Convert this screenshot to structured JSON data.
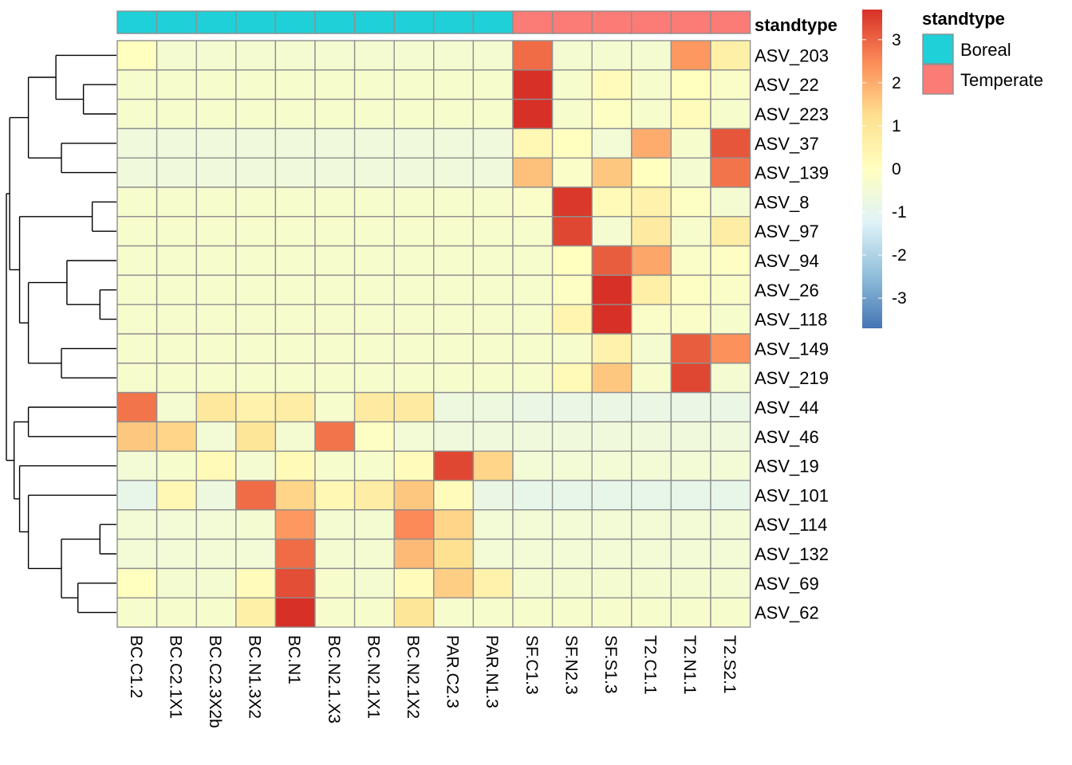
{
  "chart_data": {
    "type": "heatmap",
    "columns": [
      "BC.C1.2",
      "BC.C2.1X1",
      "BC.C2.3X2b",
      "BC.N1.3X2",
      "BC.N1",
      "BC.N2.1.X3",
      "BC.N2.1X1",
      "BC.N2.1X2",
      "PAR.C2.3",
      "PAR.N1.3",
      "SF.C1.3",
      "SF.N2.3",
      "SF.S1.3",
      "T2.C1.1",
      "T2.N1.1",
      "T2.S2.1"
    ],
    "rows": [
      "ASV_203",
      "ASV_22",
      "ASV_223",
      "ASV_37",
      "ASV_139",
      "ASV_8",
      "ASV_97",
      "ASV_94",
      "ASV_26",
      "ASV_118",
      "ASV_149",
      "ASV_219",
      "ASV_44",
      "ASV_46",
      "ASV_19",
      "ASV_101",
      "ASV_114",
      "ASV_132",
      "ASV_69",
      "ASV_62"
    ],
    "values": [
      [
        0.0,
        -0.4,
        -0.4,
        -0.4,
        -0.4,
        -0.4,
        -0.4,
        -0.4,
        -0.4,
        -0.4,
        2.9,
        -0.4,
        -0.4,
        -0.4,
        2.3,
        0.6
      ],
      [
        -0.3,
        -0.3,
        -0.3,
        -0.3,
        -0.3,
        -0.3,
        -0.3,
        -0.3,
        -0.3,
        -0.3,
        3.7,
        -0.3,
        0.1,
        -0.3,
        0.0,
        -0.2
      ],
      [
        -0.3,
        -0.3,
        -0.3,
        -0.3,
        -0.3,
        -0.3,
        -0.3,
        -0.3,
        -0.3,
        -0.3,
        3.7,
        -0.3,
        -0.1,
        -0.3,
        0.1,
        -0.3
      ],
      [
        -0.6,
        -0.6,
        -0.6,
        -0.6,
        -0.6,
        -0.6,
        -0.6,
        -0.6,
        -0.6,
        -0.6,
        0.3,
        0.0,
        -0.5,
        2.0,
        -0.3,
        3.2
      ],
      [
        -0.6,
        -0.6,
        -0.6,
        -0.6,
        -0.6,
        -0.6,
        -0.6,
        -0.6,
        -0.6,
        -0.6,
        1.7,
        -0.2,
        1.6,
        0.0,
        -0.4,
        2.8
      ],
      [
        -0.3,
        -0.3,
        -0.3,
        -0.3,
        -0.3,
        -0.3,
        -0.3,
        -0.3,
        -0.3,
        -0.3,
        -0.2,
        3.6,
        0.2,
        0.5,
        -0.1,
        -0.4
      ],
      [
        -0.3,
        -0.3,
        -0.3,
        -0.3,
        -0.3,
        -0.3,
        -0.3,
        -0.3,
        -0.3,
        -0.3,
        -0.3,
        3.4,
        -0.4,
        0.8,
        -0.3,
        0.7
      ],
      [
        -0.3,
        -0.3,
        -0.3,
        -0.3,
        -0.3,
        -0.3,
        -0.3,
        -0.3,
        -0.3,
        -0.3,
        -0.3,
        0.0,
        3.1,
        2.1,
        -0.2,
        -0.1
      ],
      [
        -0.3,
        -0.3,
        -0.3,
        -0.3,
        -0.3,
        -0.3,
        -0.3,
        -0.3,
        -0.3,
        -0.3,
        -0.3,
        -0.1,
        3.7,
        0.6,
        -0.1,
        -0.2
      ],
      [
        -0.3,
        -0.3,
        -0.3,
        -0.3,
        -0.3,
        -0.3,
        -0.3,
        -0.3,
        -0.3,
        -0.3,
        -0.3,
        0.4,
        3.7,
        -0.2,
        -0.2,
        -0.3
      ],
      [
        -0.3,
        -0.3,
        -0.3,
        -0.3,
        -0.3,
        -0.3,
        -0.3,
        -0.3,
        -0.3,
        -0.3,
        -0.3,
        -0.3,
        0.5,
        -0.4,
        3.1,
        2.4
      ],
      [
        -0.3,
        -0.3,
        -0.3,
        -0.3,
        -0.3,
        -0.3,
        -0.3,
        -0.3,
        -0.3,
        -0.3,
        -0.3,
        0.2,
        1.6,
        -0.3,
        3.4,
        -0.4
      ],
      [
        2.8,
        -0.4,
        0.9,
        0.5,
        0.7,
        -0.3,
        0.8,
        0.8,
        -0.7,
        -0.7,
        -0.8,
        -0.8,
        -0.8,
        -0.8,
        -0.8,
        -0.8
      ],
      [
        1.6,
        1.4,
        -0.5,
        1.0,
        -0.4,
        2.8,
        -0.1,
        -0.5,
        -0.6,
        -0.6,
        -0.6,
        -0.6,
        -0.6,
        -0.6,
        -0.6,
        -0.6
      ],
      [
        -0.5,
        -0.3,
        0.2,
        -0.4,
        0.2,
        -0.3,
        -0.3,
        0.1,
        3.4,
        1.4,
        -0.5,
        -0.5,
        -0.5,
        -0.5,
        -0.5,
        -0.5
      ],
      [
        -0.9,
        0.3,
        -0.7,
        2.9,
        1.4,
        0.3,
        0.7,
        1.6,
        0.1,
        -0.8,
        -0.9,
        -0.9,
        -0.9,
        -0.9,
        -0.9,
        -0.9
      ],
      [
        -0.5,
        -0.5,
        -0.5,
        -0.4,
        2.3,
        -0.4,
        -0.4,
        2.5,
        1.4,
        -0.5,
        -0.5,
        -0.5,
        -0.5,
        -0.5,
        -0.5,
        -0.5
      ],
      [
        -0.5,
        -0.5,
        -0.5,
        -0.5,
        2.9,
        -0.4,
        -0.4,
        1.8,
        1.2,
        -0.5,
        -0.5,
        -0.5,
        -0.5,
        -0.5,
        -0.5,
        -0.5
      ],
      [
        0.0,
        -0.4,
        -0.4,
        0.1,
        3.3,
        -0.3,
        -0.4,
        0.1,
        1.5,
        0.5,
        -0.4,
        -0.4,
        -0.4,
        -0.4,
        -0.4,
        -0.4
      ],
      [
        -0.3,
        -0.3,
        -0.3,
        0.6,
        3.7,
        -0.3,
        -0.3,
        1.0,
        -0.3,
        -0.3,
        -0.3,
        -0.3,
        -0.3,
        -0.3,
        -0.3,
        -0.3
      ]
    ],
    "color_scale": {
      "domain": [
        -3.7,
        3.7
      ],
      "stops": [
        "#4575b4",
        "#91bfdb",
        "#e0f3f8",
        "#ffffbf",
        "#fee090",
        "#fc8d59",
        "#d73027"
      ],
      "ticks": [
        3,
        2,
        1,
        0,
        -1,
        -2,
        -3
      ]
    },
    "column_annotation": {
      "name": "standtype",
      "values": [
        "Boreal",
        "Boreal",
        "Boreal",
        "Boreal",
        "Boreal",
        "Boreal",
        "Boreal",
        "Boreal",
        "Boreal",
        "Boreal",
        "Temperate",
        "Temperate",
        "Temperate",
        "Temperate",
        "Temperate",
        "Temperate"
      ],
      "levels": [
        {
          "label": "Boreal",
          "color": "#1fd0d8"
        },
        {
          "label": "Temperate",
          "color": "#fb7b76"
        }
      ]
    },
    "row_dendrogram": {
      "merges": [
        [
          1,
          2,
          0.3
        ],
        [
          0,
          20,
          0.55
        ],
        [
          3,
          4,
          0.5
        ],
        [
          21,
          22,
          0.8
        ],
        [
          5,
          6,
          0.22
        ],
        [
          8,
          9,
          0.15
        ],
        [
          7,
          25,
          0.45
        ],
        [
          10,
          11,
          0.5
        ],
        [
          26,
          27,
          0.8
        ],
        [
          24,
          28,
          0.88
        ],
        [
          23,
          29,
          0.97
        ],
        [
          12,
          13,
          0.8
        ],
        [
          16,
          17,
          0.15
        ],
        [
          18,
          19,
          0.35
        ],
        [
          32,
          33,
          0.5
        ],
        [
          15,
          34,
          0.8
        ],
        [
          14,
          35,
          0.88
        ],
        [
          31,
          36,
          0.93
        ],
        [
          30,
          37,
          1.0
        ]
      ]
    }
  }
}
